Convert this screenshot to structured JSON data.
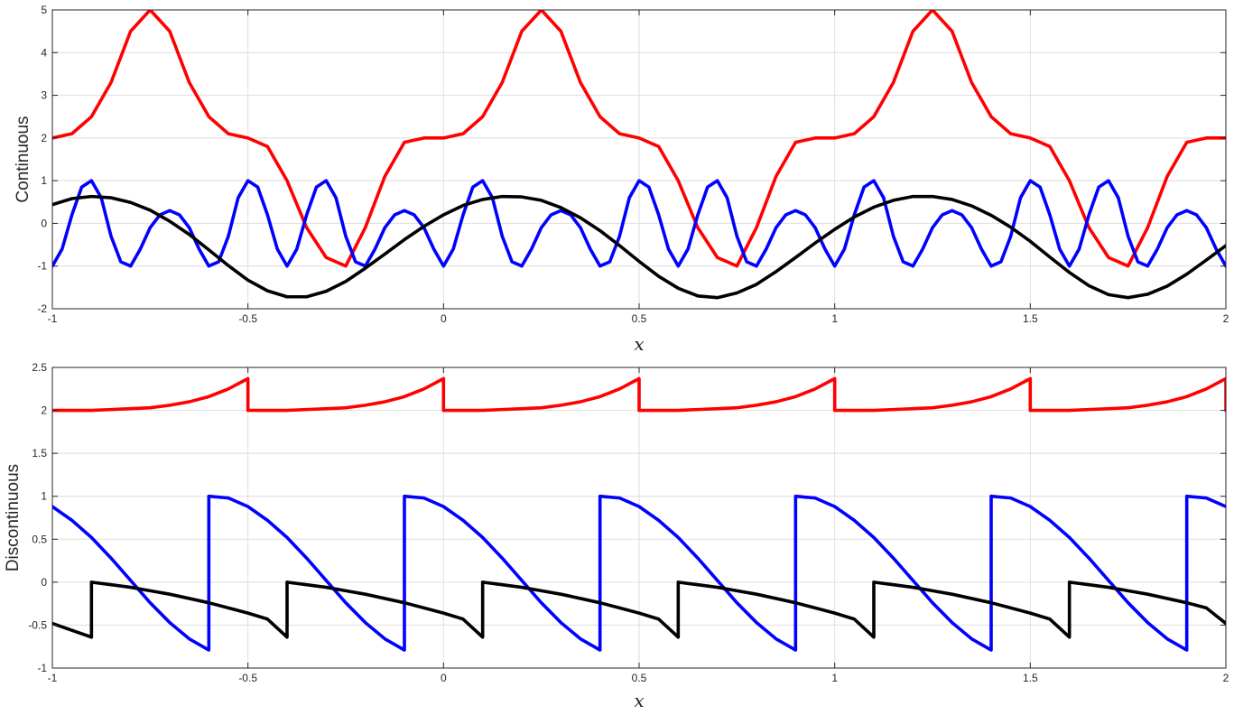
{
  "chart_data": [
    {
      "type": "line",
      "title": "",
      "xlabel": "x",
      "ylabel": "Continuous",
      "xlim": [
        -1,
        2
      ],
      "ylim": [
        -2,
        5
      ],
      "xticks": [
        -1,
        -0.5,
        0,
        0.5,
        1,
        1.5,
        2
      ],
      "xtick_labels": [
        "-1",
        "-0.5",
        "0",
        "0.5",
        "1",
        "1.5",
        "2"
      ],
      "yticks": [
        -2,
        -1,
        0,
        1,
        2,
        3,
        4,
        5
      ],
      "ytick_labels": [
        "-2",
        "-1",
        "0",
        "1",
        "2",
        "3",
        "4",
        "5"
      ],
      "grid": true,
      "legend": "none",
      "series": [
        {
          "color": "#ff0000",
          "x": [
            -1,
            -0.95,
            -0.9,
            -0.85,
            -0.8,
            -0.75,
            -0.7,
            -0.65,
            -0.6,
            -0.55,
            -0.5,
            -0.45,
            -0.4,
            -0.35,
            -0.3,
            -0.25,
            -0.2,
            -0.15,
            -0.1,
            -0.05,
            0,
            0.05,
            0.1,
            0.15,
            0.2,
            0.25,
            0.3,
            0.35,
            0.4,
            0.45,
            0.5,
            0.55,
            0.6,
            0.65,
            0.7,
            0.75,
            0.8,
            0.85,
            0.9,
            0.95,
            1,
            1.05,
            1.1,
            1.15,
            1.2,
            1.25,
            1.3,
            1.35,
            1.4,
            1.45,
            1.5,
            1.55,
            1.6,
            1.65,
            1.7,
            1.75,
            1.8,
            1.85,
            1.9,
            1.95,
            2
          ],
          "y": [
            2,
            2.1,
            2.5,
            3.3,
            4.5,
            5,
            4.5,
            3.3,
            2.5,
            2.1,
            2,
            1.8,
            1,
            -0.1,
            -0.8,
            -1,
            -0.1,
            1.1,
            1.9,
            2,
            2,
            2.1,
            2.5,
            3.3,
            4.5,
            5,
            4.5,
            3.3,
            2.5,
            2.1,
            2,
            1.8,
            1,
            -0.1,
            -0.8,
            -1,
            -0.1,
            1.1,
            1.9,
            2,
            2,
            2.1,
            2.5,
            3.3,
            4.5,
            5,
            4.5,
            3.3,
            2.5,
            2.1,
            2,
            1.8,
            1,
            -0.1,
            -0.8,
            -1,
            -0.1,
            1.1,
            1.9,
            2,
            2
          ]
        },
        {
          "color": "#0000ff",
          "x": [
            -1,
            -0.975,
            -0.95,
            -0.925,
            -0.9,
            -0.875,
            -0.85,
            -0.825,
            -0.8,
            -0.775,
            -0.75,
            -0.725,
            -0.7,
            -0.675,
            -0.65,
            -0.625,
            -0.6,
            -0.575,
            -0.55,
            -0.525,
            -0.5,
            -0.475,
            -0.45,
            -0.425,
            -0.4,
            -0.375,
            -0.35,
            -0.325,
            -0.3,
            -0.275,
            -0.25,
            -0.225,
            -0.2,
            -0.175,
            -0.15,
            -0.125,
            -0.1,
            -0.075,
            -0.05,
            -0.025,
            0,
            0.025,
            0.05,
            0.075,
            0.1,
            0.125,
            0.15,
            0.175,
            0.2,
            0.225,
            0.25,
            0.275,
            0.3,
            0.325,
            0.35,
            0.375,
            0.4,
            0.425,
            0.45,
            0.475,
            0.5,
            0.525,
            0.55,
            0.575,
            0.6,
            0.625,
            0.65,
            0.675,
            0.7,
            0.725,
            0.75,
            0.775,
            0.8,
            0.825,
            0.85,
            0.875,
            0.9,
            0.925,
            0.95,
            0.975,
            1,
            1.025,
            1.05,
            1.075,
            1.1,
            1.125,
            1.15,
            1.175,
            1.2,
            1.225,
            1.25,
            1.275,
            1.3,
            1.325,
            1.35,
            1.375,
            1.4,
            1.425,
            1.45,
            1.475,
            1.5,
            1.525,
            1.55,
            1.575,
            1.6,
            1.625,
            1.65,
            1.675,
            1.7,
            1.725,
            1.75,
            1.775,
            1.8,
            1.825,
            1.85,
            1.875,
            1.9,
            1.925,
            1.95,
            1.975,
            2
          ],
          "y": [
            -1,
            -0.6,
            0.2,
            0.85,
            1,
            0.6,
            -0.3,
            -0.9,
            -1,
            -0.6,
            -0.1,
            0.2,
            0.3,
            0.2,
            -0.1,
            -0.6,
            -1,
            -0.9,
            -0.3,
            0.6,
            1,
            0.85,
            0.2,
            -0.6,
            -1,
            -0.6,
            0.2,
            0.85,
            1,
            0.6,
            -0.3,
            -0.9,
            -1,
            -0.6,
            -0.1,
            0.2,
            0.3,
            0.2,
            -0.1,
            -0.6,
            -1,
            -0.6,
            0.2,
            0.85,
            1,
            0.6,
            -0.3,
            -0.9,
            -1,
            -0.6,
            -0.1,
            0.2,
            0.3,
            0.2,
            -0.1,
            -0.6,
            -1,
            -0.9,
            -0.3,
            0.6,
            1,
            0.85,
            0.2,
            -0.6,
            -1,
            -0.6,
            0.2,
            0.85,
            1,
            0.6,
            -0.3,
            -0.9,
            -1,
            -0.6,
            -0.1,
            0.2,
            0.3,
            0.2,
            -0.1,
            -0.6,
            -1,
            -0.6,
            0.2,
            0.85,
            1,
            0.6,
            -0.3,
            -0.9,
            -1,
            -0.6,
            -0.1,
            0.2,
            0.3,
            0.2,
            -0.1,
            -0.6,
            -1,
            -0.9,
            -0.3,
            0.6,
            1,
            0.85,
            0.2,
            -0.6,
            -1,
            -0.6,
            0.2,
            0.85,
            1,
            0.6,
            -0.3,
            -0.9,
            -1,
            -0.6,
            -0.1,
            0.2,
            0.3,
            0.2,
            -0.1,
            -0.6,
            -1
          ]
        },
        {
          "color": "#000000",
          "x": [
            -1,
            -0.95,
            -0.9,
            -0.85,
            -0.8,
            -0.75,
            -0.7,
            -0.65,
            -0.6,
            -0.55,
            -0.5,
            -0.45,
            -0.4,
            -0.35,
            -0.3,
            -0.25,
            -0.2,
            -0.15,
            -0.1,
            -0.05,
            0,
            0.05,
            0.1,
            0.15,
            0.2,
            0.25,
            0.3,
            0.35,
            0.4,
            0.45,
            0.5,
            0.55,
            0.6,
            0.65,
            0.7,
            0.75,
            0.8,
            0.85,
            0.9,
            0.95,
            1,
            1.05,
            1.1,
            1.15,
            1.2,
            1.25,
            1.3,
            1.35,
            1.4,
            1.45,
            1.5,
            1.55,
            1.6,
            1.65,
            1.7,
            1.75,
            1.8,
            1.85,
            1.9,
            1.95,
            2
          ],
          "y": [
            0.44,
            0.58,
            0.63,
            0.6,
            0.49,
            0.31,
            0.05,
            -0.26,
            -0.62,
            -0.99,
            -1.33,
            -1.58,
            -1.72,
            -1.72,
            -1.59,
            -1.36,
            -1.05,
            -0.72,
            -0.38,
            -0.07,
            0.2,
            0.42,
            0.56,
            0.63,
            0.62,
            0.54,
            0.37,
            0.13,
            -0.17,
            -0.52,
            -0.89,
            -1.24,
            -1.52,
            -1.7,
            -1.74,
            -1.63,
            -1.43,
            -1.13,
            -0.8,
            -0.46,
            -0.14,
            0.15,
            0.38,
            0.54,
            0.63,
            0.63,
            0.56,
            0.41,
            0.19,
            -0.09,
            -0.42,
            -0.79,
            -1.15,
            -1.46,
            -1.67,
            -1.74,
            -1.66,
            -1.47,
            -1.19,
            -0.86,
            -0.52
          ]
        }
      ]
    },
    {
      "type": "line",
      "title": "",
      "xlabel": "x",
      "ylabel": "Discontinuous",
      "xlim": [
        -1,
        2
      ],
      "ylim": [
        -1,
        2.5
      ],
      "xticks": [
        -1,
        -0.5,
        0,
        0.5,
        1,
        1.5,
        2
      ],
      "xtick_labels": [
        "-1",
        "-0.5",
        "0",
        "0.5",
        "1",
        "1.5",
        "2"
      ],
      "yticks": [
        -1,
        -0.5,
        0,
        0.5,
        1,
        1.5,
        2,
        2.5
      ],
      "ytick_labels": [
        "-1",
        "-0.5",
        "0",
        "0.5",
        "1",
        "1.5",
        "2",
        "2.5"
      ],
      "grid": true,
      "legend": "none",
      "series": [
        {
          "color": "#ff0000",
          "x": [
            -1,
            -0.95,
            -0.9,
            -0.85,
            -0.8,
            -0.75,
            -0.7,
            -0.65,
            -0.6,
            -0.55,
            -0.5,
            -0.5,
            -0.45,
            -0.4,
            -0.35,
            -0.3,
            -0.25,
            -0.2,
            -0.15,
            -0.1,
            -0.05,
            0,
            0,
            0.05,
            0.1,
            0.15,
            0.2,
            0.25,
            0.3,
            0.35,
            0.4,
            0.45,
            0.5,
            0.5,
            0.55,
            0.6,
            0.65,
            0.7,
            0.75,
            0.8,
            0.85,
            0.9,
            0.95,
            1,
            1,
            1.05,
            1.1,
            1.15,
            1.2,
            1.25,
            1.3,
            1.35,
            1.4,
            1.45,
            1.5,
            1.5,
            1.55,
            1.6,
            1.65,
            1.7,
            1.75,
            1.8,
            1.85,
            1.9,
            1.95,
            2,
            2
          ],
          "y": [
            2,
            2,
            2,
            2.01,
            2.02,
            2.03,
            2.06,
            2.1,
            2.16,
            2.25,
            2.37,
            2,
            2,
            2,
            2.01,
            2.02,
            2.03,
            2.06,
            2.1,
            2.16,
            2.25,
            2.37,
            2,
            2,
            2,
            2.01,
            2.02,
            2.03,
            2.06,
            2.1,
            2.16,
            2.25,
            2.37,
            2,
            2,
            2,
            2.01,
            2.02,
            2.03,
            2.06,
            2.1,
            2.16,
            2.25,
            2.37,
            2,
            2,
            2,
            2.01,
            2.02,
            2.03,
            2.06,
            2.1,
            2.16,
            2.25,
            2.37,
            2,
            2,
            2,
            2.01,
            2.02,
            2.03,
            2.06,
            2.1,
            2.16,
            2.25,
            2.37,
            2
          ]
        },
        {
          "color": "#0000ff",
          "x": [
            -1,
            -0.95,
            -0.9,
            -0.85,
            -0.8,
            -0.75,
            -0.7,
            -0.65,
            -0.6,
            -0.6,
            -0.55,
            -0.5,
            -0.45,
            -0.4,
            -0.35,
            -0.3,
            -0.25,
            -0.2,
            -0.15,
            -0.1,
            -0.1,
            -0.05,
            0,
            0.05,
            0.1,
            0.15,
            0.2,
            0.25,
            0.3,
            0.35,
            0.4,
            0.4,
            0.45,
            0.5,
            0.55,
            0.6,
            0.65,
            0.7,
            0.75,
            0.8,
            0.85,
            0.9,
            0.9,
            0.95,
            1,
            1.05,
            1.1,
            1.15,
            1.2,
            1.25,
            1.3,
            1.35,
            1.4,
            1.4,
            1.45,
            1.5,
            1.55,
            1.6,
            1.65,
            1.7,
            1.75,
            1.8,
            1.85,
            1.9,
            1.9,
            1.95,
            2
          ],
          "y": [
            0.88,
            0.72,
            0.52,
            0.28,
            0.02,
            -0.24,
            -0.47,
            -0.66,
            -0.79,
            1,
            0.98,
            0.88,
            0.72,
            0.52,
            0.28,
            0.02,
            -0.24,
            -0.47,
            -0.66,
            -0.79,
            1,
            0.98,
            0.88,
            0.72,
            0.52,
            0.28,
            0.02,
            -0.24,
            -0.47,
            -0.66,
            -0.79,
            1,
            0.98,
            0.88,
            0.72,
            0.52,
            0.28,
            0.02,
            -0.24,
            -0.47,
            -0.66,
            -0.79,
            1,
            0.98,
            0.88,
            0.72,
            0.52,
            0.28,
            0.02,
            -0.24,
            -0.47,
            -0.66,
            -0.79,
            1,
            0.98,
            0.88,
            0.72,
            0.52,
            0.28,
            0.02,
            -0.24,
            -0.47,
            -0.66,
            -0.79,
            1,
            0.98,
            0.88
          ]
        },
        {
          "color": "#000000",
          "x": [
            -1,
            -0.95,
            -0.9,
            -0.9,
            -0.85,
            -0.8,
            -0.75,
            -0.7,
            -0.65,
            -0.6,
            -0.55,
            -0.5,
            -0.45,
            -0.4,
            -0.4,
            -0.35,
            -0.3,
            -0.25,
            -0.2,
            -0.15,
            -0.1,
            -0.05,
            0,
            0.05,
            0.1,
            0.1,
            0.15,
            0.2,
            0.25,
            0.3,
            0.35,
            0.4,
            0.45,
            0.5,
            0.55,
            0.6,
            0.6,
            0.65,
            0.7,
            0.75,
            0.8,
            0.85,
            0.9,
            0.95,
            1,
            1.05,
            1.1,
            1.1,
            1.15,
            1.2,
            1.25,
            1.3,
            1.35,
            1.4,
            1.45,
            1.5,
            1.55,
            1.6,
            1.6,
            1.65,
            1.7,
            1.75,
            1.8,
            1.85,
            1.9,
            1.95,
            2
          ],
          "y": [
            -0.48,
            -0.56,
            -0.64,
            0,
            -0.03,
            -0.06,
            -0.1,
            -0.14,
            -0.19,
            -0.24,
            -0.3,
            -0.36,
            -0.43,
            -0.64,
            0,
            -0.03,
            -0.06,
            -0.1,
            -0.14,
            -0.19,
            -0.24,
            -0.3,
            -0.36,
            -0.43,
            -0.64,
            0,
            -0.03,
            -0.06,
            -0.1,
            -0.14,
            -0.19,
            -0.24,
            -0.3,
            -0.36,
            -0.43,
            -0.64,
            0,
            -0.03,
            -0.06,
            -0.1,
            -0.14,
            -0.19,
            -0.24,
            -0.3,
            -0.36,
            -0.43,
            -0.64,
            0,
            -0.03,
            -0.06,
            -0.1,
            -0.14,
            -0.19,
            -0.24,
            -0.3,
            -0.36,
            -0.43,
            -0.64,
            0,
            -0.03,
            -0.06,
            -0.1,
            -0.14,
            -0.19,
            -0.24,
            -0.3,
            -0.48
          ]
        }
      ]
    }
  ]
}
